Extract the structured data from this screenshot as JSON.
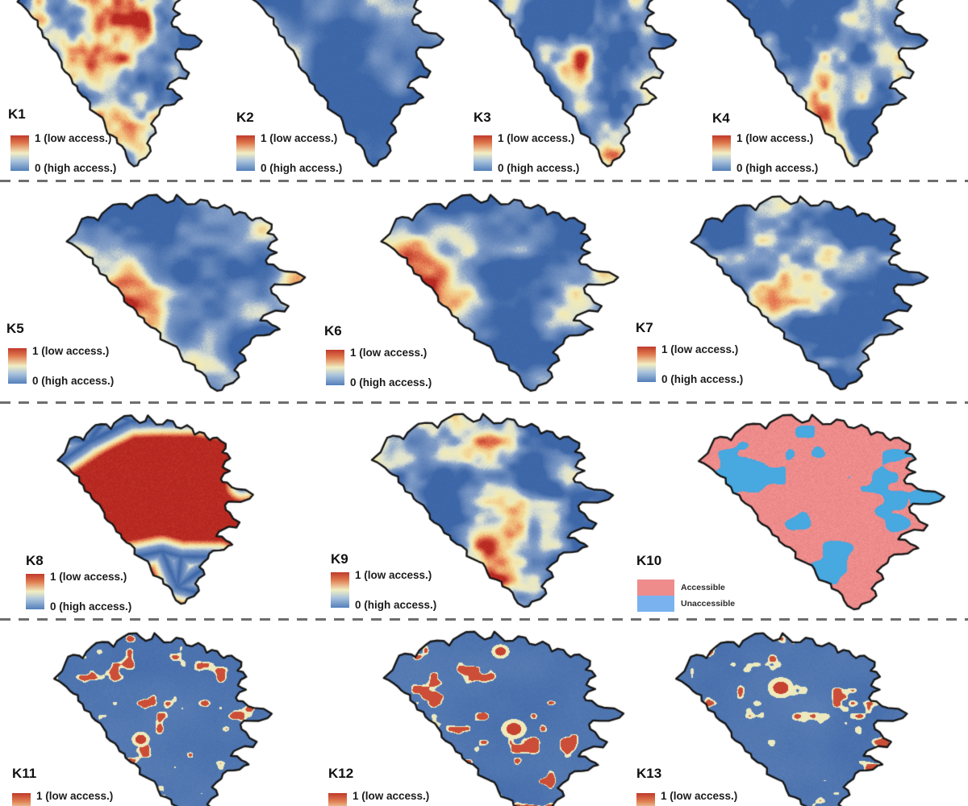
{
  "legend": {
    "low": "1 (low access.)",
    "high": "0 (high access.)"
  },
  "legend10": {
    "accessible": "Accessible",
    "unaccessible": "Unaccessible"
  },
  "colors": {
    "ramp_low_blue": "#3c66a7",
    "ramp_mid_cream": "#f2eec3",
    "ramp_high_red": "#b62620",
    "accessible_pink": "#ee8c8c",
    "unaccessible_blue": "#48a8e0",
    "outline": "#161616",
    "separator_gray": "#6e6e6e"
  },
  "maps": [
    {
      "label": "K1",
      "pattern": "speck",
      "seed": 3,
      "bias": 0.36,
      "gain": 2.1,
      "hot": [
        [
          0.33,
          0.6,
          0.16,
          0.3
        ],
        [
          0.55,
          0.78,
          0.1,
          0.22
        ]
      ],
      "legend": "gradient"
    },
    {
      "label": "K2",
      "pattern": "smooth",
      "seed": 11,
      "legend": "gradient"
    },
    {
      "label": "K3",
      "pattern": "speck",
      "seed": 19,
      "bias": 0.4,
      "gain": 2.0,
      "hot": [
        [
          0.6,
          0.55,
          0.12,
          0.18
        ]
      ],
      "legend": "gradient"
    },
    {
      "label": "K4",
      "pattern": "speck",
      "seed": 27,
      "bias": 0.4,
      "gain": 2.0,
      "hot": [
        [
          0.75,
          0.6,
          0.1,
          0.18
        ]
      ],
      "legend": "gradient"
    },
    {
      "label": "K5",
      "pattern": "west",
      "seed": 35,
      "legend": "gradient"
    },
    {
      "label": "K6",
      "pattern": "west2",
      "seed": 43,
      "legend": "gradient"
    },
    {
      "label": "K7",
      "pattern": "speck",
      "seed": 51,
      "bias": 0.4,
      "gain": 2.0,
      "hot": [
        [
          0.55,
          0.5,
          0.12,
          0.16
        ]
      ],
      "legend": "gradient"
    },
    {
      "label": "K8",
      "pattern": "dist",
      "seed": 59,
      "legend": "gradient"
    },
    {
      "label": "K9",
      "pattern": "speck",
      "seed": 67,
      "bias": 0.39,
      "gain": 2.0,
      "hot": [
        [
          0.5,
          0.68,
          0.12,
          0.2
        ]
      ],
      "legend": "gradient"
    },
    {
      "label": "K10",
      "pattern": "binary",
      "seed": 75,
      "legend": "binary"
    },
    {
      "label": "K11",
      "pattern": "sparse",
      "seed": 83,
      "red": 0.775,
      "spots": [
        [
          0.42,
          0.55,
          0.022
        ]
      ],
      "legend": "gradient"
    },
    {
      "label": "K12",
      "pattern": "sparse",
      "seed": 91,
      "red": 0.755,
      "spots": [
        [
          0.55,
          0.5,
          0.028
        ],
        [
          0.5,
          0.13,
          0.02
        ]
      ],
      "legend": "gradient"
    },
    {
      "label": "K13",
      "pattern": "sparse",
      "seed": 99,
      "red": 0.79,
      "spots": [
        [
          0.47,
          0.3,
          0.03
        ]
      ],
      "legend": "gradient"
    }
  ]
}
